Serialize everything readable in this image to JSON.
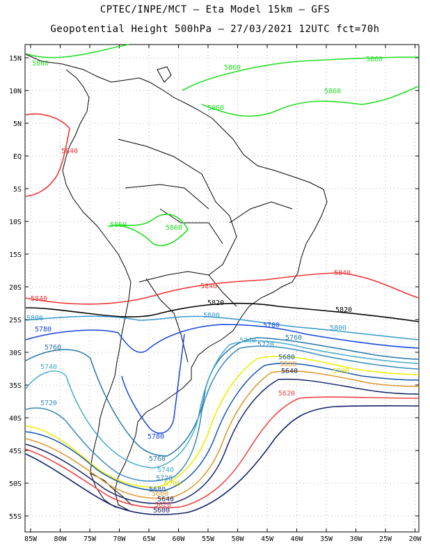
{
  "header": {
    "line1": "CPTEC/INPE/MCT –  Eta Model 15km – GFS",
    "line2": "Geopotential Height 500hPa – 27/03/2021 12UTC fct=70h"
  },
  "axes": {
    "lat_ticks": [
      "15N",
      "10N",
      "5N",
      "EQ",
      "5S",
      "10S",
      "15S",
      "20S",
      "25S",
      "30S",
      "35S",
      "40S",
      "45S",
      "50S",
      "55S"
    ],
    "lon_ticks": [
      "85W",
      "80W",
      "75W",
      "70W",
      "65W",
      "60W",
      "55W",
      "50W",
      "45W",
      "40W",
      "35W",
      "30W",
      "25W",
      "20W"
    ]
  },
  "contours": [
    {
      "value": "5860",
      "color": "#22dd22"
    },
    {
      "value": "5840",
      "color": "#ee3333"
    },
    {
      "value": "5820",
      "color": "#000000"
    },
    {
      "value": "5800",
      "color": "#3399cc"
    },
    {
      "value": "5780",
      "color": "#1144dd"
    },
    {
      "value": "5760",
      "color": "#2277aa"
    },
    {
      "value": "5740",
      "color": "#44aacc"
    },
    {
      "value": "5720",
      "color": "#3388bb"
    },
    {
      "value": "5700",
      "color": "#eeee00"
    },
    {
      "value": "5680",
      "color": "#1155aa"
    },
    {
      "value": "5660",
      "color": "#dd9933"
    },
    {
      "value": "5640",
      "color": "#112266"
    },
    {
      "value": "5620",
      "color": "#ee4444"
    }
  ],
  "labels": {
    "g1": "5860",
    "g2": "5860",
    "g3": "5860",
    "g4": "5860",
    "g5": "5860",
    "g6": "5860",
    "g7": "5860",
    "r1": "5840",
    "r2": "5840",
    "r3": "5840",
    "r4": "5840",
    "k1": "5820",
    "k2": "5820",
    "c1": "5800",
    "c2": "5800",
    "c3": "5800",
    "b1": "5780",
    "b2": "5780",
    "b3": "5780",
    "t1": "5760",
    "t2": "5760",
    "t3": "5760",
    "s1": "5740",
    "s2": "5740",
    "s3": "5740",
    "m1": "5720",
    "m2": "5720",
    "m3": "5720",
    "y1": "5700",
    "y2": "5700",
    "n1": "5680",
    "n2": "5680",
    "o1": "5660",
    "o2": "5660",
    "d1": "5640",
    "d2": "5640",
    "e1": "5620",
    "e2": "5620",
    "f1": "5600"
  }
}
